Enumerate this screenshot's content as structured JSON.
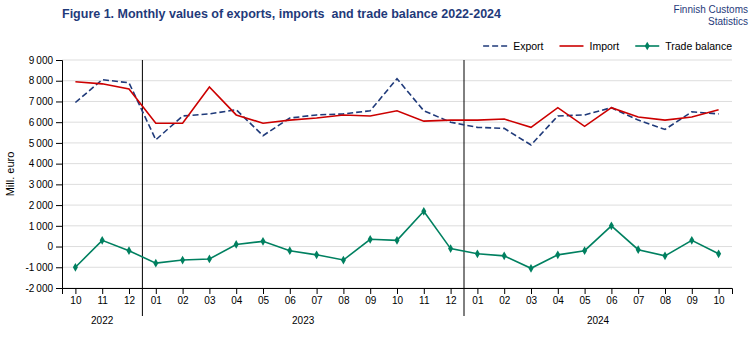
{
  "chart_data": {
    "type": "line",
    "title": "Figure 1. Monthly values of exports, imports  and trade balance 2022-2024",
    "annotations": [
      "Finnish Customs\nStatistics"
    ],
    "category_groups": [
      "2022",
      "2023",
      "2024"
    ],
    "ylabel": "Mill. euro",
    "categories": [
      "10",
      "11",
      "12",
      "01",
      "02",
      "03",
      "04",
      "05",
      "06",
      "07",
      "08",
      "09",
      "10",
      "11",
      "12",
      "01",
      "02",
      "03",
      "04",
      "05",
      "06",
      "07",
      "08",
      "09",
      "10"
    ],
    "series": [
      {
        "name": "Export",
        "color": "#1F3A7A",
        "line_style": "dashed",
        "values": [
          6950,
          8050,
          7900,
          5150,
          6300,
          6400,
          6600,
          5350,
          6200,
          6350,
          6400,
          6550,
          8100,
          6550,
          6000,
          5750,
          5700,
          4900,
          6300,
          6350,
          6700,
          6100,
          5650,
          6500,
          6400
        ]
      },
      {
        "name": "Import",
        "color": "#CC0000",
        "line_style": "solid",
        "values": [
          7950,
          7850,
          7600,
          5950,
          5950,
          7700,
          6350,
          5950,
          6100,
          6200,
          6350,
          6300,
          6550,
          6050,
          6100,
          6100,
          6150,
          5750,
          6700,
          5800,
          6700,
          6250,
          6100,
          6250,
          6600
        ]
      },
      {
        "name": "Trade balance",
        "color": "#008060",
        "line_style": "solid",
        "marker": "diamond",
        "values": [
          -1000,
          300,
          -200,
          -800,
          -650,
          -600,
          100,
          250,
          -200,
          -400,
          -650,
          350,
          300,
          1700,
          -100,
          -350,
          -450,
          -1050,
          -400,
          -200,
          1000,
          -150,
          -450,
          300,
          -350
        ]
      }
    ],
    "ylim": [
      -2000,
      9000
    ],
    "yticks": [
      {
        "value": -2000,
        "label": "-2 000"
      },
      {
        "value": -1000,
        "label": "-1 000"
      },
      0,
      {
        "value": 1000,
        "label": "1 000"
      },
      {
        "value": 2000,
        "label": "2 000"
      },
      {
        "value": 3000,
        "label": "3 000"
      },
      {
        "value": 4000,
        "label": "4 000"
      },
      {
        "value": 5000,
        "label": "5 000"
      },
      {
        "value": 6000,
        "label": "6 000"
      },
      {
        "value": 7000,
        "label": "7 000"
      },
      {
        "value": 8000,
        "label": "8 000"
      },
      {
        "value": 9000,
        "label": "9 000"
      }
    ],
    "grid": true,
    "legend": "upper right"
  }
}
